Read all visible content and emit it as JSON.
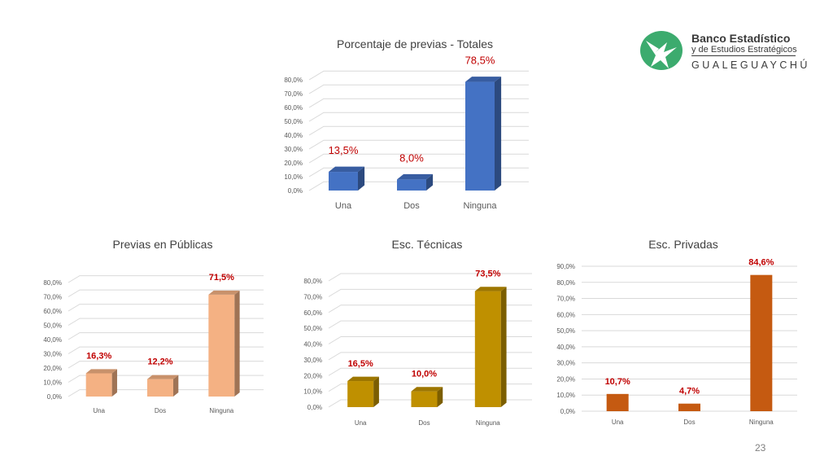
{
  "logo": {
    "name": "Banco Estadístico",
    "subtitle": "y de Estudios Estratégicos",
    "city": "GUALEGUAYCHÚ",
    "color": "#3cab6e",
    "icon": "bird-logo-icon"
  },
  "page_number": "23",
  "chart_data": [
    {
      "type": "bar",
      "title": "Porcentaje de previas - Totales",
      "categories": [
        "Una",
        "Dos",
        "Ninguna"
      ],
      "values": [
        13.5,
        8.0,
        78.5
      ],
      "data_labels": [
        "13,5%",
        "8,0%",
        "78,5%"
      ],
      "y_ticks": [
        "0,0%",
        "10,0%",
        "20,0%",
        "30,0%",
        "40,0%",
        "50,0%",
        "60,0%",
        "70,0%",
        "80,0%"
      ],
      "ylim": [
        0,
        80
      ],
      "grid": true,
      "three_d": true,
      "bar_color": "#4472c4",
      "label_color": "#c00000"
    },
    {
      "type": "bar",
      "title": "Previas en Públicas",
      "categories": [
        "Una",
        "Dos",
        "Ninguna"
      ],
      "values": [
        16.3,
        12.2,
        71.5
      ],
      "data_labels": [
        "16,3%",
        "12,2%",
        "71,5%"
      ],
      "y_ticks": [
        "0,0%",
        "10,0%",
        "20,0%",
        "30,0%",
        "40,0%",
        "50,0%",
        "60,0%",
        "70,0%",
        "80,0%"
      ],
      "ylim": [
        0,
        80
      ],
      "grid": true,
      "three_d": true,
      "bar_color": "#f4b183",
      "label_color": "#c00000"
    },
    {
      "type": "bar",
      "title": "Esc. Técnicas",
      "categories": [
        "Una",
        "Dos",
        "Ninguna"
      ],
      "values": [
        16.5,
        10.0,
        73.5
      ],
      "data_labels": [
        "16,5%",
        "10,0%",
        "73,5%"
      ],
      "y_ticks": [
        "0,0%",
        "10,0%",
        "20,0%",
        "30,0%",
        "40,0%",
        "50,0%",
        "60,0%",
        "70,0%",
        "80,0%"
      ],
      "ylim": [
        0,
        80
      ],
      "grid": true,
      "three_d": true,
      "bar_color": "#bf9000",
      "label_color": "#c00000"
    },
    {
      "type": "bar",
      "title": "Esc. Privadas",
      "categories": [
        "Una",
        "Dos",
        "Ninguna"
      ],
      "values": [
        10.7,
        4.7,
        84.6
      ],
      "data_labels": [
        "10,7%",
        "4,7%",
        "84,6%"
      ],
      "y_ticks": [
        "0,0%",
        "10,0%",
        "20,0%",
        "30,0%",
        "40,0%",
        "50,0%",
        "60,0%",
        "70,0%",
        "80,0%",
        "90,0%"
      ],
      "ylim": [
        0,
        90
      ],
      "grid": true,
      "three_d": false,
      "bar_color": "#c55a11",
      "label_color": "#c00000"
    }
  ]
}
